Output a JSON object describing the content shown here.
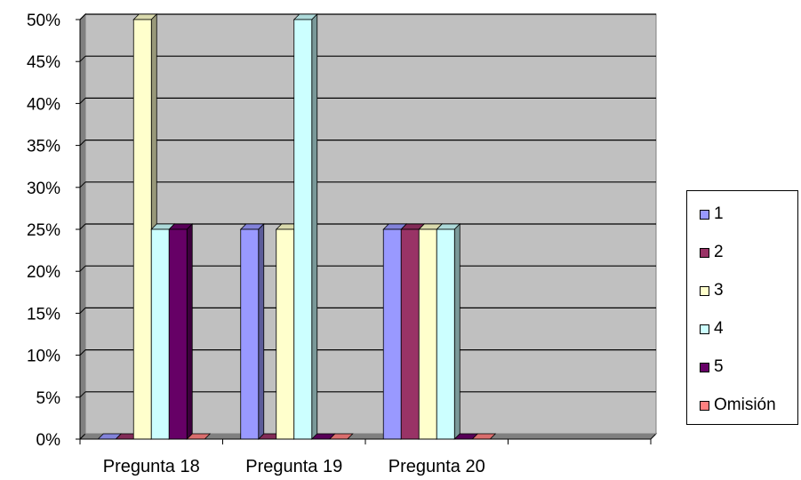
{
  "chart_data": {
    "type": "bar",
    "categories": [
      "Pregunta 18",
      "Pregunta 19",
      "Pregunta 20"
    ],
    "series": [
      {
        "name": "1",
        "values": [
          0,
          25,
          25
        ]
      },
      {
        "name": "2",
        "values": [
          0,
          0,
          25
        ]
      },
      {
        "name": "3",
        "values": [
          50,
          25,
          25
        ]
      },
      {
        "name": "4",
        "values": [
          25,
          50,
          25
        ]
      },
      {
        "name": "5",
        "values": [
          25,
          0,
          0
        ]
      },
      {
        "name": "Omisión",
        "values": [
          0,
          0,
          0
        ]
      }
    ],
    "ylim": [
      0,
      50
    ],
    "yticks": [
      "0%",
      "5%",
      "10%",
      "15%",
      "20%",
      "25%",
      "30%",
      "35%",
      "40%",
      "45%",
      "50%"
    ],
    "grid": true,
    "legend": "right",
    "colors": [
      "#9999ff",
      "#993366",
      "#ffffcc",
      "#ccffff",
      "#660066",
      "#ff8080"
    ],
    "wall_color": "#c0c0c0"
  }
}
